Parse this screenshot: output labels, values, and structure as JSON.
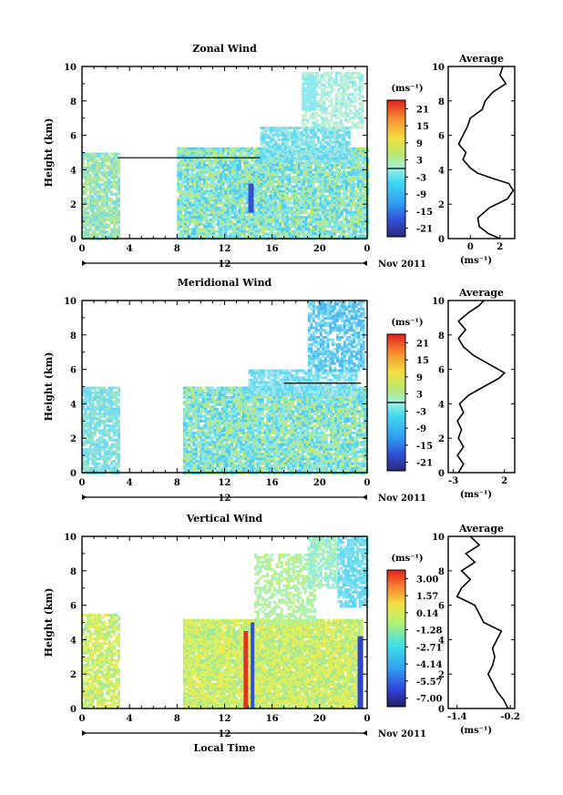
{
  "chart_data": [
    {
      "type": "heatmap",
      "title": "Zonal Wind",
      "ylabel": "Height (km)",
      "x_ticks": [
        "0",
        "4",
        "8",
        "12",
        "16",
        "20",
        "0"
      ],
      "y_ticks": [
        "0",
        "2",
        "4",
        "6",
        "8",
        "10"
      ],
      "ylim": [
        0,
        10
      ],
      "xlim": [
        0,
        24
      ],
      "date_label": "12",
      "date_suffix": "Nov 2011",
      "colorbar": {
        "unit": "(ms⁻¹)",
        "ticks": [
          "21",
          "15",
          "9",
          "3",
          "-3",
          "-9",
          "-15",
          "-21"
        ],
        "range": [
          -24,
          24
        ]
      },
      "profile": {
        "title": "Average",
        "xlabel": "(ms⁻¹)",
        "x_ticks": [
          "0",
          "2"
        ],
        "xlim": [
          -1.5,
          3
        ],
        "points": [
          [
            2.0,
            0
          ],
          [
            1.2,
            0.3
          ],
          [
            0.6,
            0.7
          ],
          [
            0.5,
            1.2
          ],
          [
            1.3,
            1.8
          ],
          [
            2.5,
            2.3
          ],
          [
            2.9,
            2.8
          ],
          [
            2.6,
            3.2
          ],
          [
            1.5,
            3.5
          ],
          [
            0.5,
            3.8
          ],
          [
            0.0,
            4.1
          ],
          [
            -0.5,
            4.6
          ],
          [
            -0.3,
            5.0
          ],
          [
            -0.8,
            5.5
          ],
          [
            -0.5,
            6.0
          ],
          [
            -0.2,
            6.5
          ],
          [
            0.0,
            7.0
          ],
          [
            0.8,
            7.5
          ],
          [
            1.0,
            8.0
          ],
          [
            1.5,
            8.5
          ],
          [
            2.4,
            9.0
          ],
          [
            2.0,
            9.5
          ],
          [
            2.2,
            10.0
          ]
        ]
      }
    },
    {
      "type": "heatmap",
      "title": "Meridional Wind",
      "ylabel": "Height (km)",
      "x_ticks": [
        "0",
        "4",
        "8",
        "12",
        "16",
        "20",
        "0"
      ],
      "y_ticks": [
        "0",
        "2",
        "4",
        "6",
        "8",
        "10"
      ],
      "ylim": [
        0,
        10
      ],
      "xlim": [
        0,
        24
      ],
      "date_label": "12",
      "date_suffix": "Nov 2011",
      "colorbar": {
        "unit": "(ms⁻¹)",
        "ticks": [
          "21",
          "15",
          "9",
          "3",
          "-3",
          "-9",
          "-15",
          "-21"
        ],
        "range": [
          -24,
          24
        ]
      },
      "profile": {
        "title": "Average",
        "xlabel": "(ms⁻¹)",
        "x_ticks": [
          "-3",
          "2"
        ],
        "xlim": [
          -3.5,
          3
        ],
        "points": [
          [
            -2.5,
            0
          ],
          [
            -2.0,
            0.5
          ],
          [
            -2.6,
            1.0
          ],
          [
            -2.0,
            1.5
          ],
          [
            -2.5,
            2.0
          ],
          [
            -2.2,
            2.5
          ],
          [
            -2.6,
            3.0
          ],
          [
            -2.0,
            3.5
          ],
          [
            -2.4,
            4.0
          ],
          [
            -1.5,
            4.5
          ],
          [
            0.0,
            5.0
          ],
          [
            1.5,
            5.5
          ],
          [
            2.0,
            5.8
          ],
          [
            0.5,
            6.3
          ],
          [
            -1.0,
            6.8
          ],
          [
            -2.0,
            7.3
          ],
          [
            -2.5,
            7.8
          ],
          [
            -1.8,
            8.3
          ],
          [
            -2.5,
            8.8
          ],
          [
            -1.5,
            9.3
          ],
          [
            -0.5,
            9.7
          ],
          [
            0.0,
            10.0
          ]
        ]
      }
    },
    {
      "type": "heatmap",
      "title": "Vertical Wind",
      "ylabel": "Height (km)",
      "xlabel": "Local Time",
      "x_ticks": [
        "0",
        "4",
        "8",
        "12",
        "16",
        "20",
        "0"
      ],
      "y_ticks": [
        "0",
        "2",
        "4",
        "6",
        "8",
        "10"
      ],
      "ylim": [
        0,
        10
      ],
      "xlim": [
        0,
        24
      ],
      "date_label": "12",
      "date_suffix": "Nov 2011",
      "colorbar": {
        "unit": "(ms⁻¹)",
        "ticks": [
          "3.00",
          "1.57",
          "0.14",
          "-1.28",
          "-2.71",
          "-4.14",
          "-5.57",
          "-7.00"
        ],
        "range": [
          -7.71,
          3.71
        ]
      },
      "profile": {
        "title": "Average",
        "xlabel": "(ms⁻¹)",
        "x_ticks": [
          "-1.4",
          "-0.2"
        ],
        "xlim": [
          -1.6,
          -0.1
        ],
        "points": [
          [
            -0.25,
            0
          ],
          [
            -0.35,
            0.5
          ],
          [
            -0.5,
            1.0
          ],
          [
            -0.6,
            1.5
          ],
          [
            -0.7,
            2.0
          ],
          [
            -0.6,
            2.5
          ],
          [
            -0.55,
            3.0
          ],
          [
            -0.6,
            3.5
          ],
          [
            -0.5,
            4.0
          ],
          [
            -0.4,
            4.5
          ],
          [
            -0.8,
            5.0
          ],
          [
            -0.9,
            5.5
          ],
          [
            -1.0,
            6.0
          ],
          [
            -1.4,
            6.5
          ],
          [
            -1.3,
            7.0
          ],
          [
            -1.1,
            7.5
          ],
          [
            -1.3,
            8.0
          ],
          [
            -1.0,
            8.5
          ],
          [
            -1.2,
            9.0
          ],
          [
            -0.9,
            9.5
          ],
          [
            -1.1,
            10.0
          ]
        ]
      }
    }
  ]
}
